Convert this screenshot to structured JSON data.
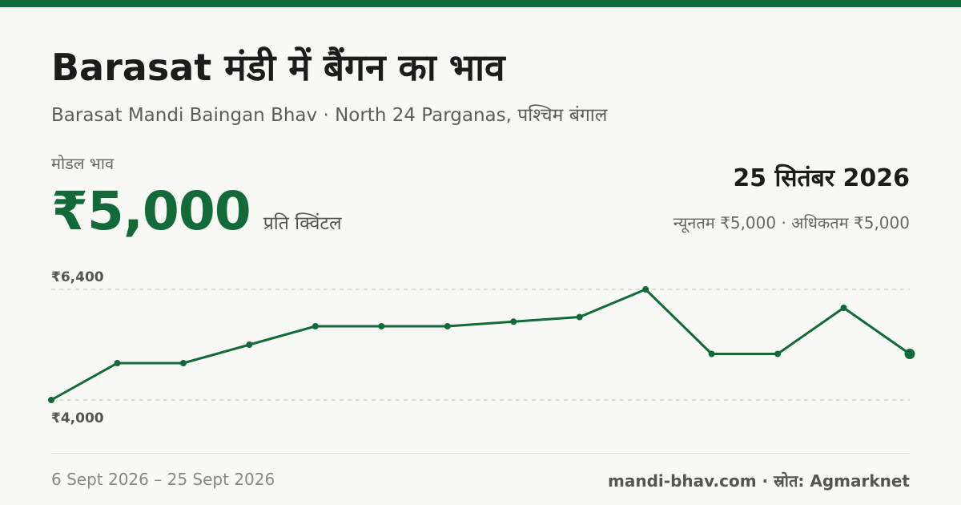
{
  "title": "Barasat मंडी में बैंगन का भाव",
  "subtitle": "Barasat Mandi Baingan Bhav · North 24 Parganas, पश्चिम बंगाल",
  "modal_label": "मोडल भाव",
  "modal_price": "₹5,000",
  "unit": "प्रति क्विंटल",
  "date": "25 सितंबर 2026",
  "min_max": "न्यूनतम ₹5,000 · अधिकतम ₹5,000",
  "date_range": "6 Sept 2026 – 25 Sept 2026",
  "credit": "mandi-bhav.com · स्रोत: Agmarknet",
  "colors": {
    "accent": "#116a37",
    "background": "#f8f8f4",
    "gridline": "#bbbbbb"
  },
  "chart_data": {
    "type": "line",
    "title": "",
    "xlabel": "",
    "ylabel": "",
    "ylim": [
      4000,
      6400
    ],
    "ytick_labels": [
      "₹6,400",
      "₹4,000"
    ],
    "y_ticks": [
      6400,
      4000
    ],
    "grid": "dashed horizontal lines at ticks",
    "legend": "none",
    "series": [
      {
        "values": [
          4000,
          4800,
          4800,
          5200,
          5600,
          5600,
          5600,
          5700,
          5800,
          6400,
          5000,
          5000,
          6000,
          5000
        ]
      }
    ]
  }
}
